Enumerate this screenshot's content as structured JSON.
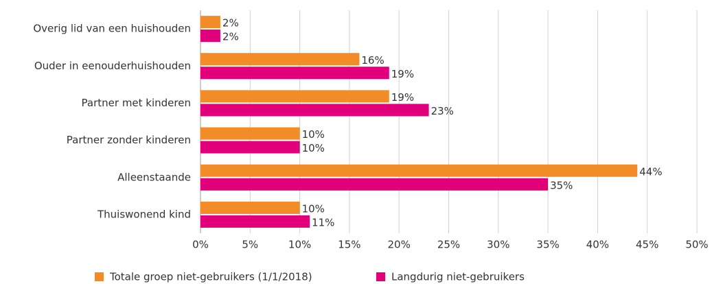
{
  "chart_data": {
    "type": "hbar",
    "categories": [
      "Overig lid van een huishouden",
      "Ouder in eenouderhuishouden",
      "Partner met kinderen",
      "Partner zonder kinderen",
      "Alleenstaande",
      "Thuiswonend kind"
    ],
    "series": [
      {
        "name": "Totale groep niet-gebruikers (1/1/2018)",
        "color": "#f28c28",
        "values": [
          2,
          16,
          19,
          10,
          44,
          10
        ],
        "value_labels": [
          "2%",
          "16%",
          "19%",
          "10%",
          "44%",
          "10%"
        ]
      },
      {
        "name": "Langdurig niet-gebruikers",
        "color": "#e2007a",
        "values": [
          2,
          19,
          23,
          10,
          35,
          11
        ],
        "value_labels": [
          "2%",
          "19%",
          "23%",
          "10%",
          "35%",
          "11%"
        ]
      }
    ],
    "xlim": [
      0,
      50
    ],
    "xticks": [
      {
        "value": 0,
        "label": "0%"
      },
      {
        "value": 5,
        "label": "5%"
      },
      {
        "value": 10,
        "label": "10%"
      },
      {
        "value": 15,
        "label": "15%"
      },
      {
        "value": 20,
        "label": "20%"
      },
      {
        "value": 25,
        "label": "25%"
      },
      {
        "value": 30,
        "label": "30%"
      },
      {
        "value": 35,
        "label": "35%"
      },
      {
        "value": 40,
        "label": "40%"
      },
      {
        "value": 45,
        "label": "45%"
      },
      {
        "value": 50,
        "label": "50%"
      }
    ],
    "grid": true,
    "legend": "bottom"
  }
}
